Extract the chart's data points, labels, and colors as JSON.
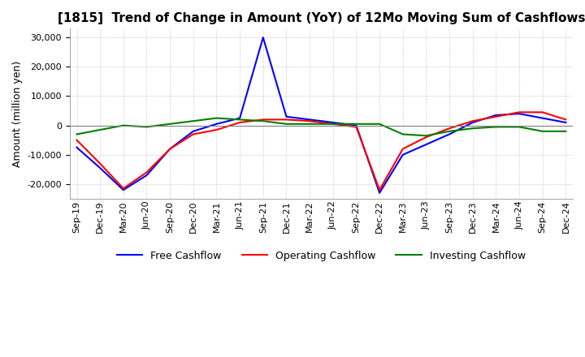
{
  "title": "[1815]  Trend of Change in Amount (YoY) of 12Mo Moving Sum of Cashflows",
  "ylabel": "Amount (million yen)",
  "ylim": [
    -25000,
    33000
  ],
  "yticks": [
    -20000,
    -10000,
    0,
    10000,
    20000,
    30000
  ],
  "x_labels": [
    "Sep-19",
    "Dec-19",
    "Mar-20",
    "Jun-20",
    "Sep-20",
    "Dec-20",
    "Mar-21",
    "Jun-21",
    "Sep-21",
    "Dec-21",
    "Mar-22",
    "Jun-22",
    "Sep-22",
    "Dec-22",
    "Mar-23",
    "Jun-23",
    "Sep-23",
    "Dec-23",
    "Mar-24",
    "Jun-24",
    "Sep-24",
    "Dec-24"
  ],
  "operating": [
    -5000,
    -13000,
    -21500,
    -16000,
    -8000,
    -3000,
    -1500,
    1000,
    2000,
    2000,
    1500,
    500,
    -500,
    -22000,
    -8000,
    -4000,
    -1000,
    1500,
    3000,
    4500,
    4500,
    2000
  ],
  "investing": [
    -3000,
    -1500,
    0,
    -500,
    500,
    1500,
    2500,
    2000,
    1500,
    500,
    500,
    500,
    500,
    500,
    -3000,
    -3500,
    -2000,
    -1000,
    -500,
    -500,
    -2000,
    -2000
  ],
  "free": [
    -7500,
    -14500,
    -22000,
    -17000,
    -8000,
    -2000,
    500,
    2500,
    30000,
    3000,
    2000,
    1000,
    0,
    -23000,
    -10000,
    -6500,
    -3000,
    1000,
    3500,
    4000,
    2500,
    1000
  ],
  "operating_color": "#ff0000",
  "investing_color": "#008000",
  "free_color": "#0000ff",
  "background_color": "#ffffff",
  "grid_color": "#aaaaaa",
  "title_fontsize": 11,
  "label_fontsize": 9,
  "tick_fontsize": 8,
  "legend_fontsize": 9
}
